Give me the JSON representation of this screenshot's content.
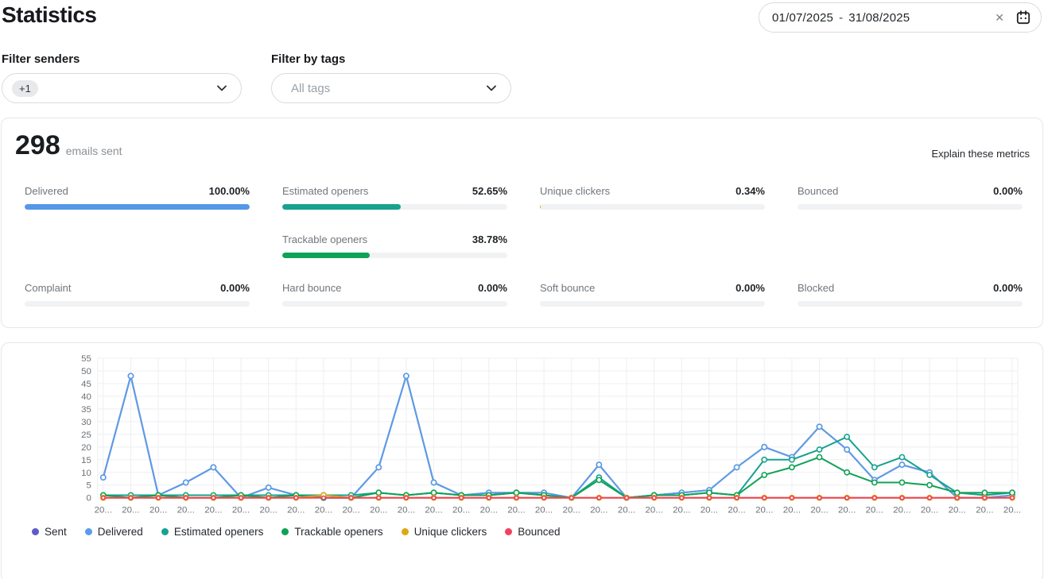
{
  "header": {
    "title": "Statistics",
    "date_range": {
      "start": "01/07/2025",
      "separator": "-",
      "end": "31/08/2025"
    }
  },
  "filters": {
    "senders": {
      "label": "Filter senders",
      "chip": "+1"
    },
    "tags": {
      "label": "Filter by tags",
      "placeholder": "All tags"
    }
  },
  "summary": {
    "count": "298",
    "count_suffix": "emails sent",
    "explain_link": "Explain these metrics"
  },
  "metrics": {
    "rows": [
      [
        {
          "label": "Delivered",
          "value": "100.00%",
          "pct": 100,
          "color": "#5598e6"
        },
        {
          "label": "Estimated openers",
          "value": "52.65%",
          "pct": 52.65,
          "color": "#17a28e"
        },
        {
          "label": "Unique clickers",
          "value": "0.34%",
          "pct": 0.34,
          "color": "#dca915"
        },
        {
          "label": "Bounced",
          "value": "0.00%",
          "pct": 0,
          "color": "#f2415c"
        }
      ],
      [
        null,
        {
          "label": "Trackable openers",
          "value": "38.78%",
          "pct": 38.78,
          "color": "#10a256"
        },
        null,
        null
      ],
      [
        {
          "label": "Complaint",
          "value": "0.00%",
          "pct": 0,
          "color": "#f2415c"
        },
        {
          "label": "Hard bounce",
          "value": "0.00%",
          "pct": 0,
          "color": "#f2415c"
        },
        {
          "label": "Soft bounce",
          "value": "0.00%",
          "pct": 0,
          "color": "#f2415c"
        },
        {
          "label": "Blocked",
          "value": "0.00%",
          "pct": 0,
          "color": "#f2415c"
        }
      ]
    ]
  },
  "chart_data": {
    "type": "line",
    "title": "",
    "xlabel": "",
    "ylabel": "",
    "ylim": [
      0,
      55
    ],
    "yticks": [
      0,
      5,
      10,
      15,
      20,
      25,
      30,
      35,
      40,
      45,
      50,
      55
    ],
    "grid": true,
    "legend_position": "bottom-left",
    "x_labels_truncated": true,
    "categories": [
      "20...",
      "20...",
      "20...",
      "20...",
      "20...",
      "20...",
      "20...",
      "20...",
      "20...",
      "20...",
      "20...",
      "20...",
      "20...",
      "20...",
      "20...",
      "20...",
      "20...",
      "20...",
      "20...",
      "20...",
      "20...",
      "20...",
      "20...",
      "20...",
      "20...",
      "20...",
      "20...",
      "20...",
      "20...",
      "20...",
      "20...",
      "20...",
      "20...",
      "20..."
    ],
    "series": [
      {
        "name": "Sent",
        "color": "#5e5bc7",
        "values": [
          8,
          48,
          1,
          6,
          12,
          0,
          4,
          1,
          0,
          0,
          12,
          48,
          6,
          1,
          2,
          2,
          2,
          0,
          13,
          0,
          1,
          2,
          3,
          12,
          20,
          16,
          28,
          19,
          7,
          13,
          10,
          0,
          0,
          1
        ]
      },
      {
        "name": "Delivered",
        "color": "#5c9ce6",
        "values": [
          8,
          48,
          1,
          6,
          12,
          0,
          4,
          1,
          0,
          0,
          12,
          48,
          6,
          1,
          2,
          2,
          2,
          0,
          13,
          0,
          1,
          2,
          3,
          12,
          20,
          16,
          28,
          19,
          7,
          13,
          10,
          0,
          0,
          1
        ]
      },
      {
        "name": "Estimated openers",
        "color": "#17a28e",
        "values": [
          1,
          1,
          1,
          1,
          1,
          1,
          1,
          1,
          1,
          1,
          2,
          1,
          2,
          1,
          1,
          2,
          1,
          0,
          8,
          0,
          1,
          1,
          2,
          1,
          15,
          15,
          19,
          24,
          12,
          16,
          9,
          2,
          1,
          2
        ]
      },
      {
        "name": "Trackable openers",
        "color": "#10a256",
        "values": [
          1,
          0,
          1,
          0,
          0,
          1,
          0,
          1,
          0,
          0,
          2,
          1,
          2,
          1,
          1,
          2,
          1,
          0,
          7,
          0,
          1,
          1,
          2,
          1,
          9,
          12,
          16,
          10,
          6,
          6,
          5,
          2,
          2,
          2
        ]
      },
      {
        "name": "Unique clickers",
        "color": "#dca915",
        "values": [
          0,
          0,
          0,
          0,
          0,
          0,
          0,
          0,
          1,
          0,
          0,
          0,
          0,
          0,
          0,
          0,
          0,
          0,
          0,
          0,
          0,
          0,
          0,
          0,
          0,
          0,
          0,
          0,
          0,
          0,
          0,
          0,
          0,
          0
        ]
      },
      {
        "name": "Bounced",
        "color": "#f2415c",
        "values": [
          0,
          0,
          0,
          0,
          0,
          0,
          0,
          0,
          0,
          0,
          0,
          0,
          0,
          0,
          0,
          0,
          0,
          0,
          0,
          0,
          0,
          0,
          0,
          0,
          0,
          0,
          0,
          0,
          0,
          0,
          0,
          0,
          0,
          0
        ]
      }
    ]
  }
}
